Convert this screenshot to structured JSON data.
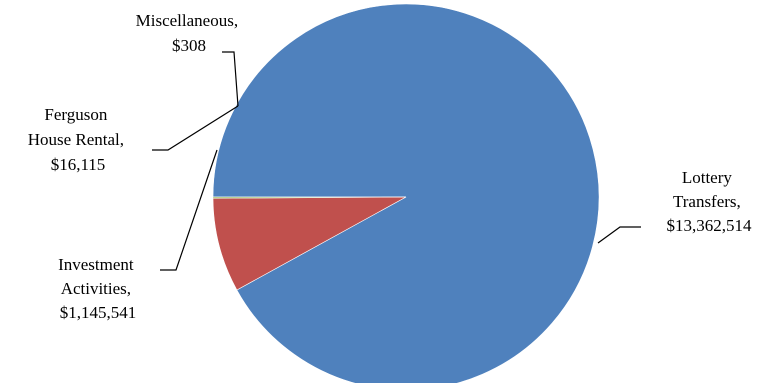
{
  "chart_data": {
    "type": "pie",
    "title": "",
    "slices": [
      {
        "name": "Lottery Transfers",
        "value": 13362514,
        "value_label": "$13,362,514",
        "color": "#4F81BD"
      },
      {
        "name": "Investment Activities",
        "value": 1145541,
        "value_label": "$1,145,541",
        "color": "#C0504D"
      },
      {
        "name": "Ferguson House Rental",
        "value": 16115,
        "value_label": "$16,115",
        "color": "#9BBB59"
      },
      {
        "name": "Miscellaneous",
        "value": 308,
        "value_label": "$308",
        "color": "#8064A2"
      }
    ],
    "labels": {
      "lottery": [
        "Lottery",
        "Transfers,",
        "$13,362,514"
      ],
      "investment": [
        "Investment",
        "Activities,",
        "$1,145,541"
      ],
      "ferguson": [
        "Ferguson",
        "House Rental,",
        "$16,115"
      ],
      "misc": [
        "Miscellaneous,",
        "$308"
      ]
    },
    "legend": "none"
  }
}
